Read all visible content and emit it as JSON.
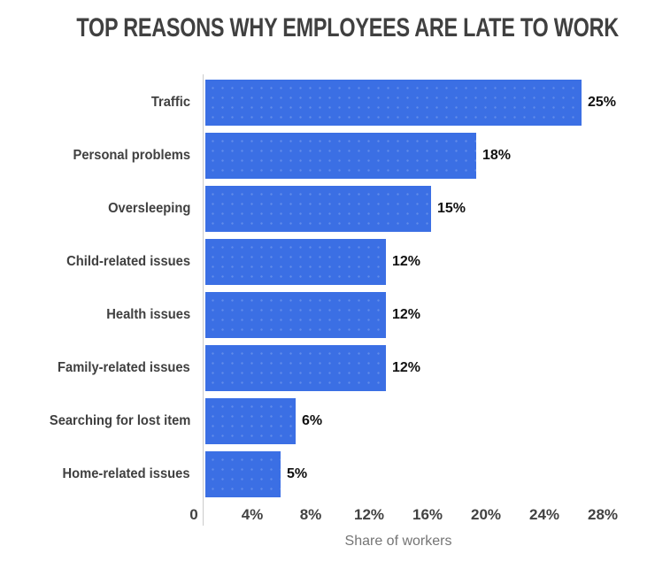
{
  "page": {
    "background": "#ffffff"
  },
  "chart_data": {
    "type": "bar",
    "orientation": "horizontal",
    "title": "TOP REASONS WHY EMPLOYEES ARE LATE TO WORK",
    "categories": [
      "Traffic",
      "Personal problems",
      "Oversleeping",
      "Child-related issues",
      "Health issues",
      "Family-related issues",
      "Searching for lost item",
      "Home-related issues"
    ],
    "values": [
      25,
      18,
      15,
      12,
      12,
      12,
      6,
      5
    ],
    "data_labels": [
      "25%",
      "18%",
      "15%",
      "12%",
      "12%",
      "12%",
      "6%",
      "5%"
    ],
    "xlabel": "Share of workers",
    "x_ticks": [
      0,
      4,
      8,
      12,
      16,
      20,
      24,
      28
    ],
    "x_tick_labels": [
      "0",
      "4%",
      "8%",
      "12%",
      "16%",
      "20%",
      "24%",
      "28%"
    ],
    "xlim": [
      0,
      28
    ],
    "grid": false,
    "legend": false,
    "bar_color": "#3B6FE4",
    "title_color": "#404040",
    "category_label_color": "#404040",
    "value_label_color": "#111111",
    "tick_label_color": "#424242",
    "axis_label_color": "#757575",
    "axis_line_color": "#cccccc"
  }
}
